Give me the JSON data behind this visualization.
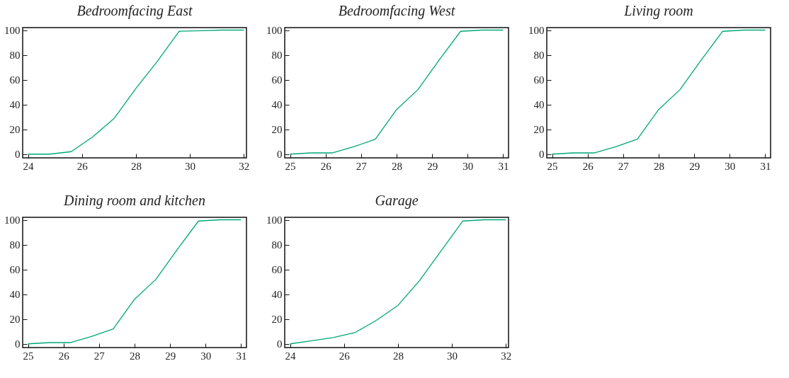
{
  "chart_data": [
    {
      "type": "line",
      "title": "Bedroomfacing  East",
      "x": [
        24,
        24.8,
        25.6,
        26.4,
        27.2,
        28,
        28.8,
        29.6,
        30.4,
        31.2,
        32
      ],
      "series": [
        {
          "color": "#00a878",
          "values": [
            0,
            0,
            2,
            14,
            29,
            53,
            75,
            99,
            99.5,
            100,
            100
          ]
        }
      ],
      "xlim": [
        23.8,
        32.1
      ],
      "xticks": [
        24,
        26,
        28,
        30,
        32
      ],
      "ylim": [
        -3,
        102
      ],
      "yticks": [
        0,
        20,
        40,
        60,
        80,
        100
      ],
      "grid": false
    },
    {
      "type": "line",
      "title": "Bedroomfacing  West",
      "x": [
        25,
        25.6,
        26.2,
        26.8,
        27.4,
        28,
        28.6,
        29.2,
        29.8,
        30.4,
        31
      ],
      "series": [
        {
          "color": "#00a878",
          "values": [
            0,
            1,
            1,
            6,
            12,
            36,
            52,
            76,
            99,
            100,
            100
          ]
        }
      ],
      "xlim": [
        24.85,
        31.15
      ],
      "xticks": [
        25,
        26,
        27,
        28,
        29,
        30,
        31
      ],
      "ylim": [
        -3,
        102
      ],
      "yticks": [
        0,
        20,
        40,
        60,
        80,
        100
      ],
      "grid": false
    },
    {
      "type": "line",
      "title": "Living room",
      "x": [
        25,
        25.6,
        26.2,
        26.8,
        27.4,
        28,
        28.6,
        29.2,
        29.8,
        30.4,
        31
      ],
      "series": [
        {
          "color": "#00a878",
          "values": [
            0,
            1,
            1,
            6,
            12,
            36,
            52,
            76,
            99,
            100,
            100
          ]
        }
      ],
      "xlim": [
        24.85,
        31.15
      ],
      "xticks": [
        25,
        26,
        27,
        28,
        29,
        30,
        31
      ],
      "ylim": [
        -3,
        102
      ],
      "yticks": [
        0,
        20,
        40,
        60,
        80,
        100
      ],
      "grid": false
    },
    {
      "type": "line",
      "title": "Dining room and kitchen",
      "x": [
        25,
        25.6,
        26.2,
        26.8,
        27.4,
        28,
        28.6,
        29.2,
        29.8,
        30.4,
        31
      ],
      "series": [
        {
          "color": "#00a878",
          "values": [
            0,
            1,
            1,
            6,
            12,
            36,
            52,
            76,
            99,
            100,
            100
          ]
        }
      ],
      "xlim": [
        24.85,
        31.15
      ],
      "xticks": [
        25,
        26,
        27,
        28,
        29,
        30,
        31
      ],
      "ylim": [
        -3,
        102
      ],
      "yticks": [
        0,
        20,
        40,
        60,
        80,
        100
      ],
      "grid": false
    },
    {
      "type": "line",
      "title": "Garage",
      "x": [
        24,
        24.8,
        25.6,
        26.4,
        27.2,
        28,
        28.8,
        29.6,
        30.4,
        31.2,
        32
      ],
      "series": [
        {
          "color": "#00a878",
          "values": [
            0,
            2.5,
            5,
            9,
            19,
            31,
            51,
            75,
            99,
            100,
            100
          ]
        }
      ],
      "xlim": [
        23.8,
        32.1
      ],
      "xticks": [
        24,
        26,
        28,
        30,
        32
      ],
      "ylim": [
        -3,
        102
      ],
      "yticks": [
        0,
        20,
        40,
        60,
        80,
        100
      ],
      "grid": false
    }
  ]
}
